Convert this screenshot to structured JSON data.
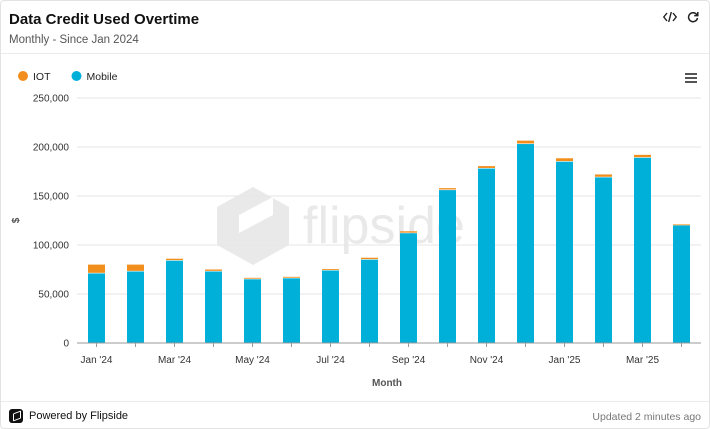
{
  "header": {
    "title": "Data Credit Used Overtime",
    "subtitle": "Monthly - Since Jan 2024",
    "icons": [
      "code-icon",
      "refresh-icon"
    ]
  },
  "menu_icon": "hamburger-menu-icon",
  "watermark": {
    "text": "flipside"
  },
  "footer": {
    "brand": "Powered by Flipside",
    "updated": "Updated 2 minutes ago"
  },
  "colors": {
    "iot": "#f28e1c",
    "mobile": "#00b0d8",
    "grid": "#e6e6e6",
    "axis": "#444444"
  },
  "chart_data": {
    "type": "bar",
    "stacked": true,
    "categories": [
      "Jan '24",
      "Feb '24",
      "Mar '24",
      "Apr '24",
      "May '24",
      "Jun '24",
      "Jul '24",
      "Aug '24",
      "Sep '24",
      "Oct '24",
      "Nov '24",
      "Dec '24",
      "Jan '25",
      "Feb '25",
      "Mar '25",
      "Apr '25"
    ],
    "tick_labels": [
      "Jan '24",
      "",
      "Mar '24",
      "",
      "May '24",
      "",
      "Jul '24",
      "",
      "Sep '24",
      "",
      "Nov '24",
      "",
      "Jan '25",
      "",
      "Mar '25",
      ""
    ],
    "series": [
      {
        "name": "IOT",
        "values": [
          9000,
          7000,
          2000,
          2000,
          1500,
          1500,
          1500,
          2000,
          2000,
          2000,
          2500,
          3500,
          3500,
          3000,
          3000,
          1000
        ]
      },
      {
        "name": "Mobile",
        "values": [
          71000,
          73000,
          84000,
          73000,
          65000,
          66000,
          74000,
          85000,
          112000,
          156000,
          178000,
          203000,
          185000,
          169000,
          189000,
          120000
        ]
      }
    ],
    "xlabel": "Month",
    "ylabel": "$",
    "ylim": [
      0,
      250000
    ],
    "yticks": [
      0,
      50000,
      100000,
      150000,
      200000,
      250000
    ],
    "ytick_labels": [
      "0",
      "50,000",
      "100,000",
      "150,000",
      "200,000",
      "250,000"
    ],
    "legend_position": "top-left",
    "grid": true
  }
}
